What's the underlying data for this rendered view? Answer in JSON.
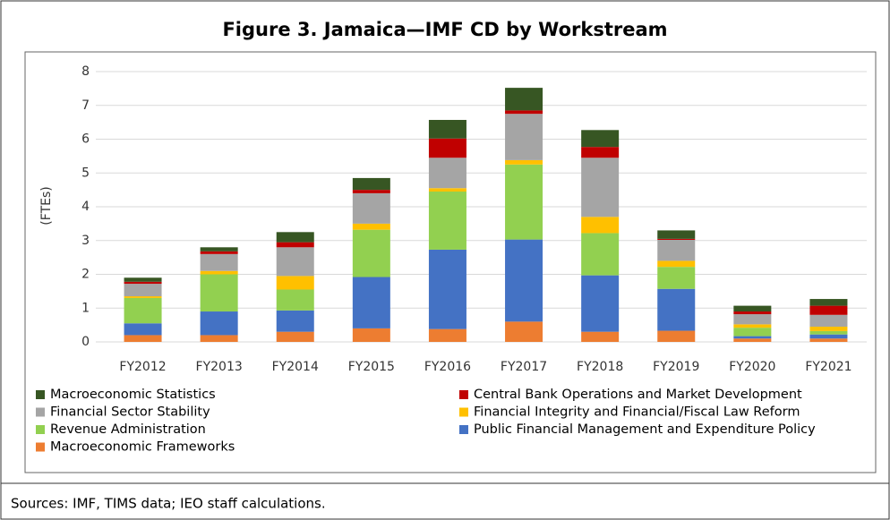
{
  "chart_data": {
    "type": "stacked-bar",
    "title": "Figure 3. Jamaica—IMF CD by Workstream",
    "y_label": "(FTEs)",
    "note": "Sources: IMF, TIMS data; IEO staff calculations.",
    "categories": [
      "FY2012",
      "FY2013",
      "FY2014",
      "FY2015",
      "FY2016",
      "FY2017",
      "FY2018",
      "FY2019",
      "FY2020",
      "FY2021"
    ],
    "series": [
      {
        "name": "Macroeconomic Statistics",
        "color": "#375623",
        "values": [
          0.12,
          0.12,
          0.3,
          0.35,
          0.55,
          0.67,
          0.5,
          0.25,
          0.17,
          0.2
        ]
      },
      {
        "name": "Central Bank Operations and Market Development",
        "color": "#c00000",
        "values": [
          0.06,
          0.08,
          0.15,
          0.1,
          0.57,
          0.1,
          0.32,
          0.03,
          0.08,
          0.27
        ]
      },
      {
        "name": "Financial Sector Stability",
        "color": "#a5a5a5",
        "values": [
          0.37,
          0.5,
          0.85,
          0.9,
          0.9,
          1.37,
          1.75,
          0.62,
          0.3,
          0.35
        ]
      },
      {
        "name": "Financial Integrity and Financial/Fiscal Law Reform",
        "color": "#ffc000",
        "values": [
          0.05,
          0.1,
          0.4,
          0.18,
          0.1,
          0.13,
          0.48,
          0.18,
          0.1,
          0.13
        ]
      },
      {
        "name": "Revenue Administration",
        "color": "#92d050",
        "values": [
          0.75,
          1.1,
          0.62,
          1.4,
          1.72,
          2.22,
          1.25,
          0.65,
          0.25,
          0.1
        ]
      },
      {
        "name": "Public Financial Management and Expenditure Policy",
        "color": "#4472c4",
        "values": [
          0.35,
          0.7,
          0.63,
          1.52,
          2.35,
          2.43,
          1.67,
          1.24,
          0.07,
          0.12
        ]
      },
      {
        "name": "Macroeconomic Frameworks",
        "color": "#ed7d31",
        "values": [
          0.2,
          0.2,
          0.3,
          0.4,
          0.38,
          0.6,
          0.3,
          0.33,
          0.1,
          0.1
        ]
      }
    ],
    "ylim": [
      0,
      8
    ],
    "yticks": [
      0,
      1,
      2,
      3,
      4,
      5,
      6,
      7,
      8
    ],
    "grid": true
  }
}
